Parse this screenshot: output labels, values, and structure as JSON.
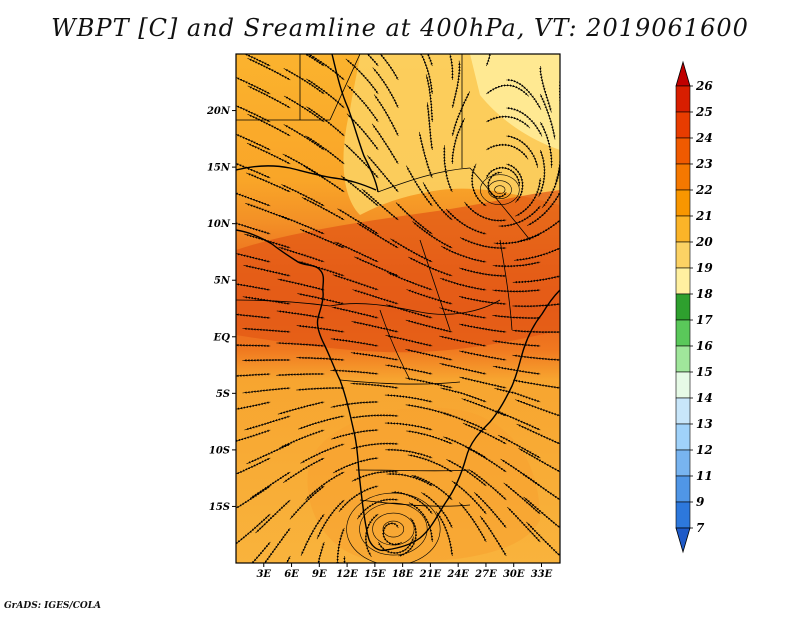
{
  "title": "WBPT [C] and Sreamline at 400hPa, VT: 2019061600",
  "credit": "GrADS: IGES/COLA",
  "map": {
    "lat_labels": [
      "20N",
      "15N",
      "10N",
      "5N",
      "EQ",
      "5S",
      "10S",
      "15S"
    ],
    "lat_values": [
      20,
      15,
      10,
      5,
      0,
      -5,
      -10,
      -15
    ],
    "lon_labels": [
      "3E",
      "6E",
      "9E",
      "12E",
      "15E",
      "18E",
      "21E",
      "24E",
      "27E",
      "30E",
      "33E"
    ],
    "lon_values": [
      3,
      6,
      9,
      12,
      15,
      18,
      21,
      24,
      27,
      30,
      33
    ],
    "lon_range": [
      0,
      35
    ],
    "lat_range": [
      -20,
      25
    ],
    "field": "wet-bulb potential temperature",
    "overlay": "streamlines",
    "features": [
      {
        "name": "cyclonic circulation",
        "lon": 28.5,
        "lat": 13
      },
      {
        "name": "anticyclonic circulation",
        "lon": 17,
        "lat": -17
      }
    ]
  },
  "colorbar": {
    "labels": [
      "26",
      "25",
      "24",
      "23",
      "22",
      "21",
      "20",
      "19",
      "18",
      "17",
      "16",
      "15",
      "14",
      "13",
      "12",
      "11",
      "9",
      "7"
    ],
    "colors": [
      "#c00000",
      "#d81e00",
      "#e83c00",
      "#f05a00",
      "#f57800",
      "#f89600",
      "#fbb428",
      "#fcd264",
      "#fff0a0",
      "#2ea02e",
      "#5ac85a",
      "#a0e69b",
      "#e6fae6",
      "#c8e6fa",
      "#a0d2fa",
      "#78b4f0",
      "#5096e6",
      "#2d78dc",
      "#1e5ac8"
    ]
  }
}
